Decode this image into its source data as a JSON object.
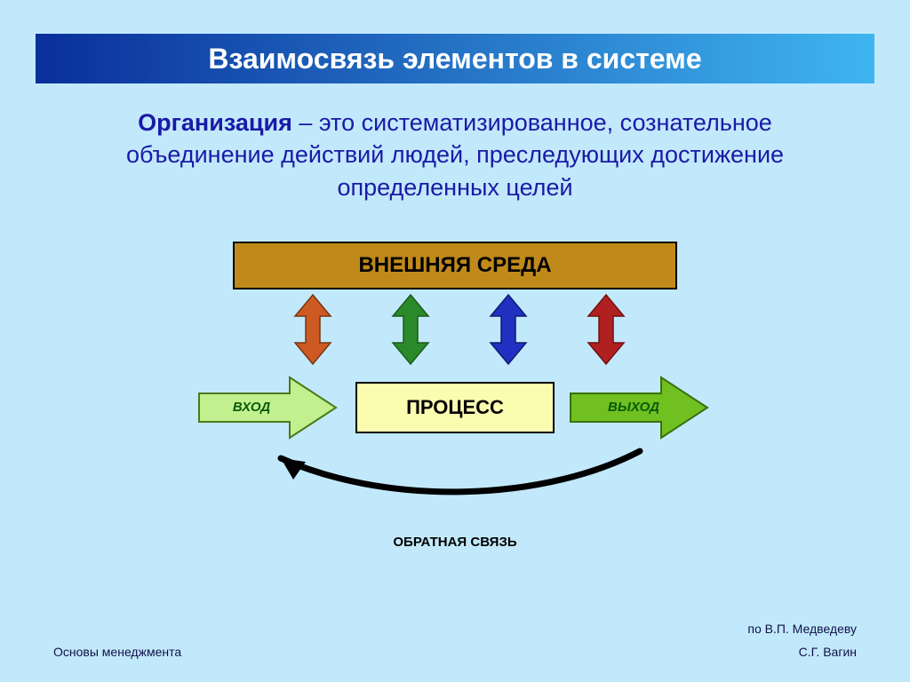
{
  "background_color": "#c2e9fb",
  "title": {
    "text": "Взаимосвязь элементов в системе",
    "fontsize": 32,
    "color": "#ffffff",
    "gradient_from": "#0a2f9a",
    "gradient_to": "#3fb5f0"
  },
  "definition": {
    "term": "Организация",
    "term_color": "#1a1aa8",
    "rest": " – это систематизированное, сознательное объединение действий людей, преследующих достижение определенных целей",
    "rest_color": "#1a1aa8",
    "fontsize": 27
  },
  "environment_box": {
    "label": "ВНЕШНЯЯ СРЕДА",
    "fill": "#c08a1a",
    "border": "#000000",
    "text_color": "#000000",
    "fontsize": 24
  },
  "bidir_arrows": [
    {
      "fill": "#cd5a22",
      "stroke": "#7a3412"
    },
    {
      "fill": "#2a8a2a",
      "stroke": "#1a5a1a"
    },
    {
      "fill": "#2030c0",
      "stroke": "#101a70"
    },
    {
      "fill": "#b02020",
      "stroke": "#701010"
    }
  ],
  "input_arrow": {
    "label": "ВХОД",
    "fill": "#c3f08f",
    "stroke": "#4a7a1a",
    "text_color": "#0a5a0a",
    "fontsize": 15
  },
  "process_box": {
    "label": "ПРОЦЕСС",
    "fill": "#fafcb0",
    "border": "#000000",
    "text_color": "#000000",
    "fontsize": 22
  },
  "output_arrow": {
    "label": "ВЫХОД",
    "fill": "#6fc020",
    "stroke": "#3a7010",
    "text_color": "#0a5a0a",
    "fontsize": 15
  },
  "feedback": {
    "label": "ОБРАТНАЯ  СВЯЗЬ",
    "stroke": "#000000",
    "text_color": "#000000",
    "fontsize": 15
  },
  "attribution": {
    "text": "по В.П.   Медведеву",
    "color": "#10104a",
    "fontsize": 14
  },
  "footer": {
    "left": "Основы менеджмента",
    "right": "С.Г. Вагин",
    "color": "#10104a",
    "fontsize": 14
  }
}
